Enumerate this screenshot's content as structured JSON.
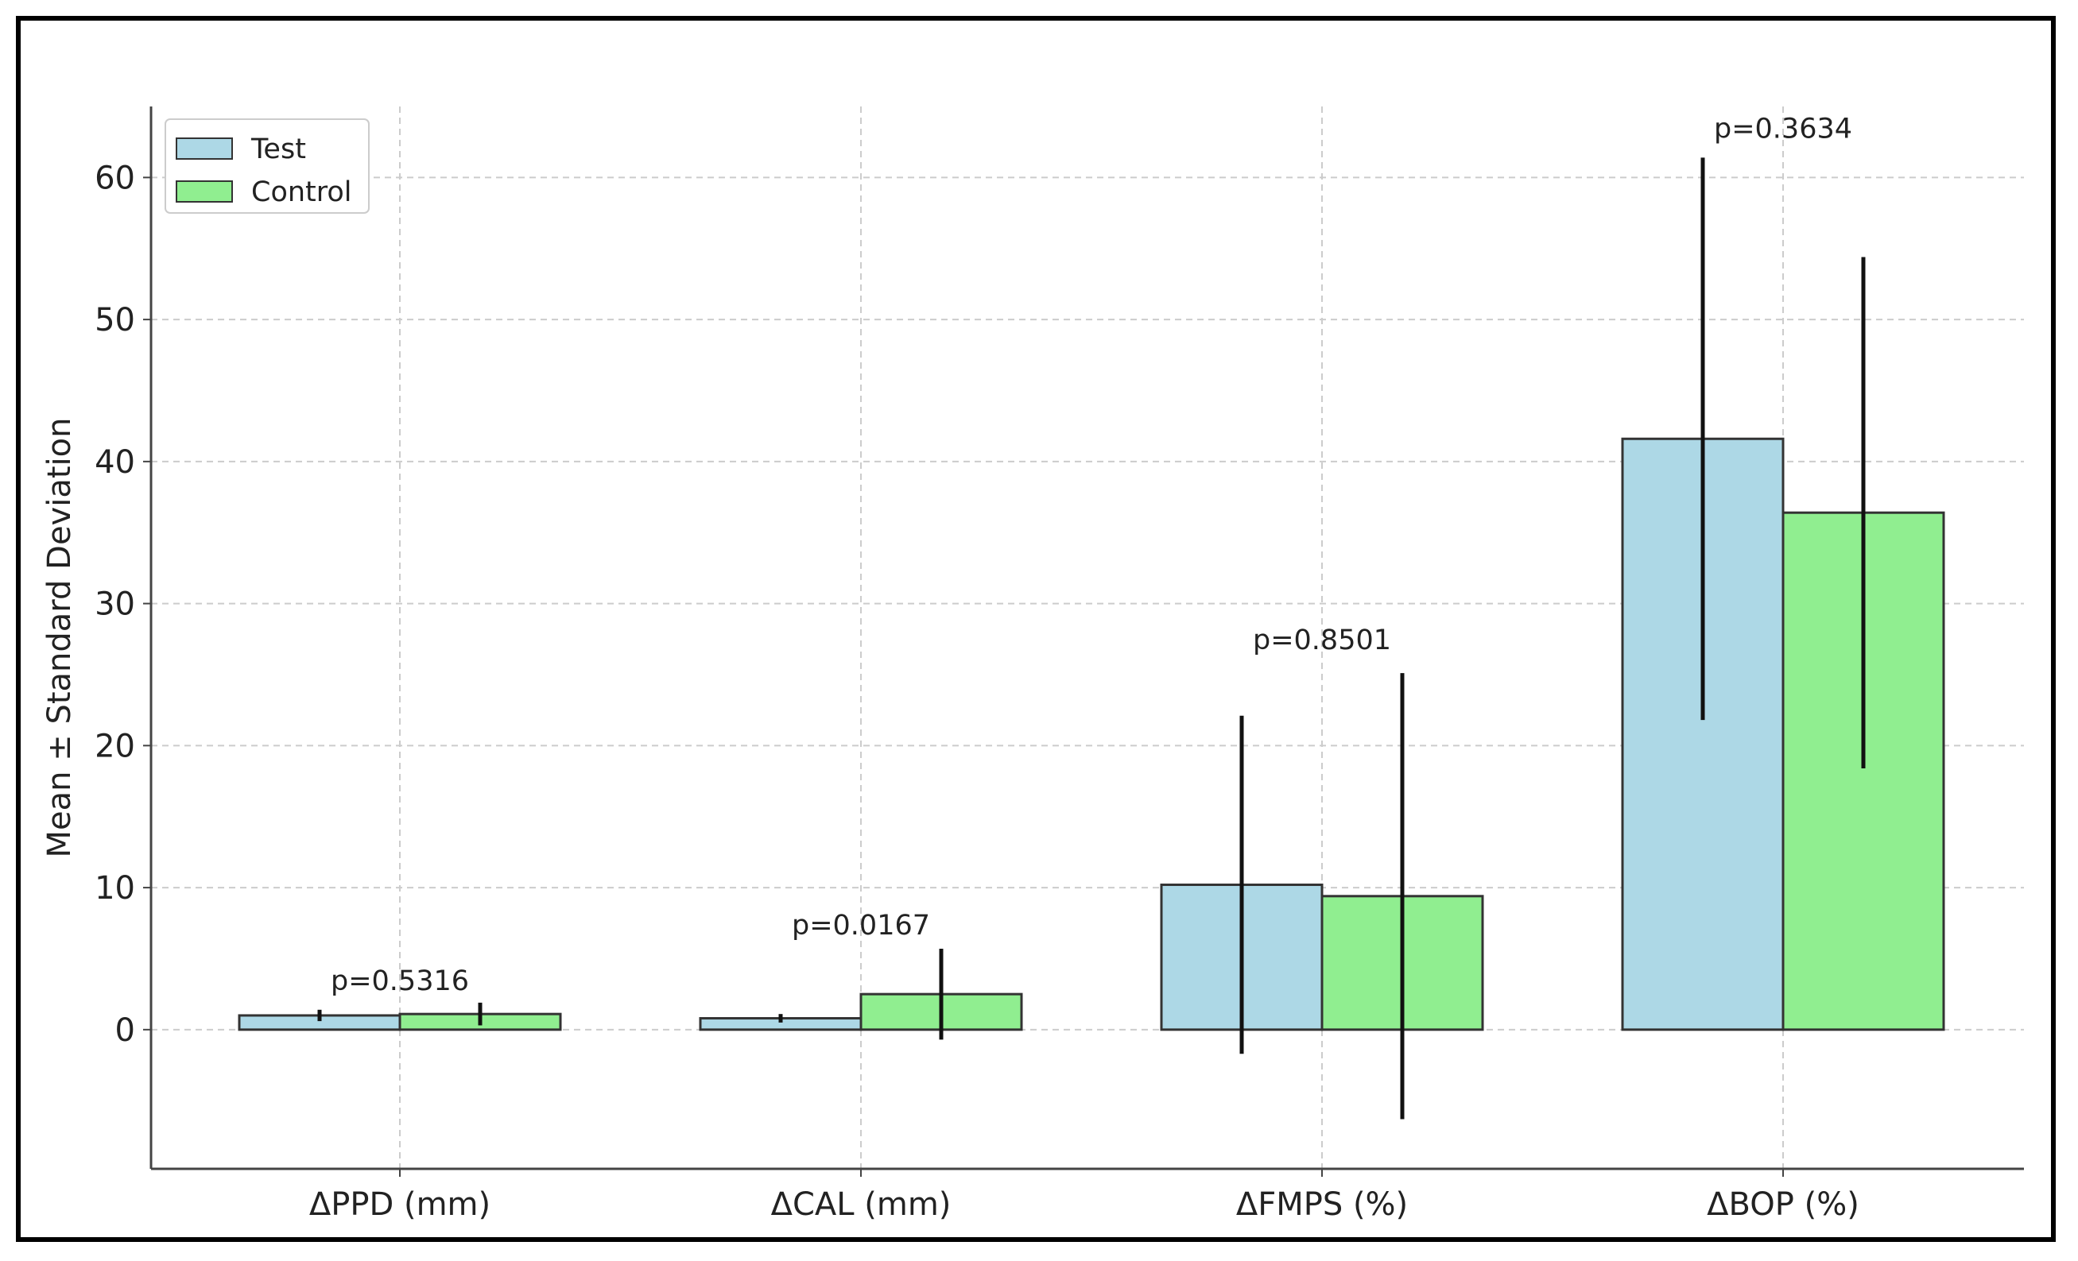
{
  "chart_data": {
    "type": "bar",
    "title": "",
    "xlabel": "",
    "ylabel": "Mean ± Standard Deviation",
    "ylim": [
      -9.8,
      65
    ],
    "yticks": [
      0,
      10,
      20,
      30,
      40,
      50,
      60
    ],
    "grid": true,
    "legend_position": "top-left",
    "categories": [
      "ΔPPD (mm)",
      "ΔCAL (mm)",
      "ΔFMPS (%)",
      "ΔBOP (%)"
    ],
    "series": [
      {
        "name": "Test",
        "color": "#add8e6",
        "values": [
          1.0,
          0.8,
          10.2,
          41.6
        ],
        "error": [
          0.4,
          0.3,
          11.9,
          19.8
        ]
      },
      {
        "name": "Control",
        "color": "#90ee90",
        "values": [
          1.1,
          2.5,
          9.4,
          36.4
        ],
        "error": [
          0.8,
          3.2,
          15.7,
          18.0
        ]
      }
    ],
    "annotations": [
      "p=0.5316",
      "p=0.0167",
      "p=0.8501",
      "p=0.3634"
    ],
    "annotation_y": [
      2.8,
      6.7,
      26.8,
      62.8
    ]
  }
}
